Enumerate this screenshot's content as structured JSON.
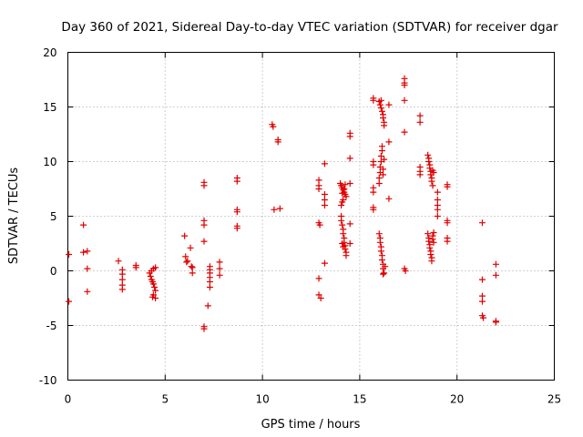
{
  "chart_data": {
    "type": "scatter",
    "title": "Day 360 of 2021, Sidereal Day-to-day VTEC variation (SDTVAR) for receiver dgar",
    "xlabel": "GPS time / hours",
    "ylabel": "SDTVAR / TECUs",
    "xlim": [
      0,
      25
    ],
    "ylim": [
      -10,
      20
    ],
    "xticks": [
      0,
      5,
      10,
      15,
      20,
      25
    ],
    "yticks": [
      -10,
      -5,
      0,
      5,
      10,
      15,
      20
    ],
    "xtick_labels": [
      "0",
      "5",
      "10",
      "15",
      "20",
      "25"
    ],
    "ytick_labels": [
      "-10",
      "-5",
      "0",
      "5",
      "10",
      "15",
      "20"
    ],
    "grid": true,
    "marker": "+",
    "color": "#e00000",
    "series": [
      {
        "name": "SDTVAR",
        "points": [
          [
            0.05,
            1.5
          ],
          [
            0.05,
            -2.8
          ],
          [
            0.8,
            4.2
          ],
          [
            0.8,
            1.7
          ],
          [
            1.0,
            1.8
          ],
          [
            1.0,
            0.2
          ],
          [
            1.0,
            -1.9
          ],
          [
            2.6,
            0.9
          ],
          [
            2.8,
            0.1
          ],
          [
            2.8,
            -0.3
          ],
          [
            2.8,
            -0.8
          ],
          [
            2.8,
            -1.3
          ],
          [
            2.8,
            -1.7
          ],
          [
            3.5,
            0.5
          ],
          [
            3.5,
            0.3
          ],
          [
            4.2,
            -0.2
          ],
          [
            4.25,
            -0.5
          ],
          [
            4.3,
            -0.8
          ],
          [
            4.35,
            -1.0
          ],
          [
            4.4,
            -1.2
          ],
          [
            4.45,
            -1.5
          ],
          [
            4.3,
            0.0
          ],
          [
            4.4,
            0.2
          ],
          [
            4.5,
            0.3
          ],
          [
            4.5,
            -1.8
          ],
          [
            4.4,
            -2.2
          ],
          [
            4.5,
            -2.5
          ],
          [
            4.35,
            -2.4
          ],
          [
            6.0,
            3.2
          ],
          [
            6.05,
            1.3
          ],
          [
            6.1,
            0.8
          ],
          [
            6.15,
            0.9
          ],
          [
            6.3,
            2.1
          ],
          [
            6.35,
            0.4
          ],
          [
            6.4,
            -0.2
          ],
          [
            6.4,
            0.3
          ],
          [
            7.0,
            8.1
          ],
          [
            7.0,
            7.8
          ],
          [
            7.0,
            4.6
          ],
          [
            7.0,
            4.2
          ],
          [
            7.0,
            2.7
          ],
          [
            7.0,
            -5.3
          ],
          [
            7.0,
            -5.1
          ],
          [
            7.3,
            0.4
          ],
          [
            7.3,
            0.1
          ],
          [
            7.3,
            -0.2
          ],
          [
            7.3,
            -0.6
          ],
          [
            7.3,
            -1.0
          ],
          [
            7.3,
            -1.5
          ],
          [
            7.2,
            -3.2
          ],
          [
            7.8,
            0.8
          ],
          [
            7.8,
            0.2
          ],
          [
            7.8,
            -0.4
          ],
          [
            8.7,
            8.5
          ],
          [
            8.7,
            8.2
          ],
          [
            8.7,
            5.6
          ],
          [
            8.7,
            5.4
          ],
          [
            8.7,
            4.1
          ],
          [
            8.7,
            3.9
          ],
          [
            10.5,
            13.4
          ],
          [
            10.55,
            13.2
          ],
          [
            10.8,
            12.0
          ],
          [
            10.8,
            11.8
          ],
          [
            10.6,
            5.6
          ],
          [
            10.9,
            5.7
          ],
          [
            12.9,
            8.3
          ],
          [
            12.9,
            7.8
          ],
          [
            12.9,
            7.5
          ],
          [
            12.9,
            4.4
          ],
          [
            12.95,
            4.2
          ],
          [
            12.9,
            -0.7
          ],
          [
            12.9,
            -2.2
          ],
          [
            13.0,
            -2.5
          ],
          [
            13.2,
            9.8
          ],
          [
            13.2,
            7.0
          ],
          [
            13.2,
            6.5
          ],
          [
            13.2,
            6.0
          ],
          [
            13.2,
            0.7
          ],
          [
            14.0,
            8.0
          ],
          [
            14.05,
            7.8
          ],
          [
            14.1,
            7.6
          ],
          [
            14.15,
            7.4
          ],
          [
            14.2,
            7.2
          ],
          [
            14.25,
            7.0
          ],
          [
            14.3,
            6.8
          ],
          [
            14.15,
            6.5
          ],
          [
            14.1,
            6.3
          ],
          [
            14.05,
            6.0
          ],
          [
            14.25,
            7.9
          ],
          [
            14.2,
            7.5
          ],
          [
            14.1,
            7.1
          ],
          [
            14.05,
            5.0
          ],
          [
            14.05,
            4.6
          ],
          [
            14.1,
            4.2
          ],
          [
            14.15,
            3.8
          ],
          [
            14.15,
            3.4
          ],
          [
            14.2,
            3.0
          ],
          [
            14.2,
            2.6
          ],
          [
            14.25,
            2.3
          ],
          [
            14.25,
            2.0
          ],
          [
            14.3,
            1.7
          ],
          [
            14.3,
            1.4
          ],
          [
            14.1,
            2.5
          ],
          [
            14.15,
            2.2
          ],
          [
            14.5,
            12.6
          ],
          [
            14.5,
            12.3
          ],
          [
            14.5,
            10.3
          ],
          [
            14.5,
            8.0
          ],
          [
            14.5,
            4.3
          ],
          [
            14.5,
            2.5
          ],
          [
            15.7,
            15.8
          ],
          [
            15.7,
            15.6
          ],
          [
            15.7,
            10.0
          ],
          [
            15.7,
            9.7
          ],
          [
            15.7,
            7.6
          ],
          [
            15.7,
            7.2
          ],
          [
            15.7,
            5.8
          ],
          [
            15.7,
            5.6
          ],
          [
            16.0,
            15.5
          ],
          [
            16.05,
            15.2
          ],
          [
            16.1,
            14.9
          ],
          [
            16.15,
            14.6
          ],
          [
            16.2,
            14.3
          ],
          [
            16.2,
            14.0
          ],
          [
            16.25,
            13.6
          ],
          [
            16.25,
            13.3
          ],
          [
            16.0,
            8.0
          ],
          [
            16.0,
            8.5
          ],
          [
            16.05,
            9.0
          ],
          [
            16.05,
            9.5
          ],
          [
            16.1,
            10.0
          ],
          [
            16.1,
            10.5
          ],
          [
            16.15,
            11.0
          ],
          [
            16.15,
            11.4
          ],
          [
            16.2,
            8.8
          ],
          [
            16.2,
            9.3
          ],
          [
            16.25,
            10.2
          ],
          [
            16.0,
            3.4
          ],
          [
            16.05,
            3.0
          ],
          [
            16.05,
            2.6
          ],
          [
            16.1,
            2.2
          ],
          [
            16.1,
            1.8
          ],
          [
            16.15,
            1.4
          ],
          [
            16.15,
            1.0
          ],
          [
            16.2,
            0.6
          ],
          [
            16.2,
            0.2
          ],
          [
            16.25,
            -0.2
          ],
          [
            16.2,
            -0.3
          ],
          [
            16.3,
            0.4
          ],
          [
            16.5,
            15.2
          ],
          [
            16.5,
            11.8
          ],
          [
            16.5,
            6.6
          ],
          [
            16.1,
            15.6
          ],
          [
            17.3,
            17.6
          ],
          [
            17.3,
            17.2
          ],
          [
            17.3,
            17.0
          ],
          [
            17.3,
            15.6
          ],
          [
            17.3,
            12.7
          ],
          [
            17.3,
            0.2
          ],
          [
            17.35,
            0.0
          ],
          [
            18.1,
            14.2
          ],
          [
            18.1,
            13.6
          ],
          [
            18.1,
            9.5
          ],
          [
            18.1,
            9.1
          ],
          [
            18.1,
            8.8
          ],
          [
            18.5,
            10.6
          ],
          [
            18.55,
            10.3
          ],
          [
            18.55,
            10.0
          ],
          [
            18.6,
            9.7
          ],
          [
            18.6,
            9.4
          ],
          [
            18.65,
            9.1
          ],
          [
            18.65,
            8.8
          ],
          [
            18.7,
            8.5
          ],
          [
            18.7,
            8.2
          ],
          [
            18.75,
            7.8
          ],
          [
            18.75,
            9.2
          ],
          [
            18.8,
            9.0
          ],
          [
            18.5,
            3.4
          ],
          [
            18.55,
            3.0
          ],
          [
            18.55,
            2.7
          ],
          [
            18.6,
            2.4
          ],
          [
            18.6,
            2.1
          ],
          [
            18.65,
            1.8
          ],
          [
            18.65,
            1.5
          ],
          [
            18.7,
            1.2
          ],
          [
            18.7,
            0.9
          ],
          [
            18.75,
            3.2
          ],
          [
            18.75,
            2.9
          ],
          [
            18.8,
            3.5
          ],
          [
            18.8,
            2.6
          ],
          [
            19.0,
            7.2
          ],
          [
            19.0,
            6.5
          ],
          [
            19.0,
            6.0
          ],
          [
            19.0,
            5.6
          ],
          [
            19.0,
            5.0
          ],
          [
            19.5,
            7.9
          ],
          [
            19.5,
            7.7
          ],
          [
            19.5,
            4.6
          ],
          [
            19.5,
            4.4
          ],
          [
            19.5,
            3.0
          ],
          [
            19.5,
            2.7
          ],
          [
            21.3,
            4.4
          ],
          [
            21.3,
            -0.8
          ],
          [
            21.3,
            -2.3
          ],
          [
            21.3,
            -2.8
          ],
          [
            21.3,
            -4.1
          ],
          [
            21.35,
            -4.3
          ],
          [
            22.0,
            0.6
          ],
          [
            22.0,
            -0.4
          ],
          [
            22.0,
            -4.6
          ],
          [
            22.0,
            -4.7
          ]
        ]
      }
    ]
  }
}
